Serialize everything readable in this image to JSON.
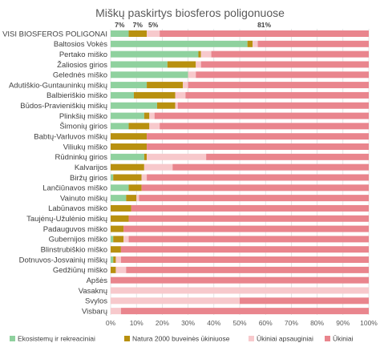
{
  "chart_data": {
    "type": "bar",
    "stacked": true,
    "orientation": "horizontal",
    "title": "Miškų paskirtys biosferos poligonuose",
    "categories": [
      "VISI BIOSFEROS POLIGONAI",
      "Baltosios Vokės",
      "Pertako miško",
      "Žaliosios girios",
      "Gelednės miško",
      "Adutiškio-Guntauninkų miškų",
      "Balbieriškio miško",
      "Būdos-Pravieniškių miškų",
      "Plinkšių miško",
      "Šimonių girios",
      "Babtų-Varluvos miškų",
      "Viliukų miško",
      "Rūdninkų girios",
      "Kalvarijos",
      "Biržų girios",
      "Lančiūnavos miško",
      "Vainuto miškų",
      "Labūnavos miško",
      "Taujėnų-Užulėnio miškų",
      "Padauguvos miško",
      "Gubernijos miško",
      "Blinstrubiškio miško",
      "Dotnuvos-Josvainių miškų",
      "Gedžiūnų miško",
      "Apšės",
      "Vasaknų",
      "Svylos",
      "Visbarų"
    ],
    "series": [
      {
        "name": "Ekosistemų ir rekreaciniai",
        "color": "#8fd19e",
        "values": [
          7,
          53,
          34,
          22,
          30,
          14,
          9,
          18,
          13,
          7,
          0,
          0,
          13,
          0,
          1,
          7,
          6,
          0,
          0,
          0,
          1,
          0,
          1,
          0,
          0,
          0,
          0,
          0
        ]
      },
      {
        "name": "Natura 2000 buveinės ūkiniuose",
        "color": "#b8900f",
        "values": [
          7,
          2,
          1,
          11,
          0,
          14,
          16,
          7,
          2,
          8,
          14,
          14,
          1,
          13,
          11,
          5,
          4,
          8,
          7,
          5,
          4,
          4,
          1,
          2,
          0,
          0,
          0,
          0
        ]
      },
      {
        "name": "Ūkiniai apsauginiai",
        "color": "#f7c9cc",
        "values": [
          5,
          2,
          4,
          2,
          3,
          2,
          4,
          1,
          2,
          4,
          0,
          0,
          23,
          11,
          2,
          0,
          1,
          0,
          0,
          0,
          2,
          0,
          2,
          4,
          0,
          100,
          50,
          4
        ]
      },
      {
        "name": "Ūkiniai",
        "color": "#e9858d",
        "values": [
          81,
          43,
          61,
          65,
          67,
          70,
          71,
          74,
          83,
          81,
          86,
          86,
          63,
          76,
          86,
          88,
          89,
          92,
          93,
          95,
          93,
          96,
          96,
          94,
          100,
          0,
          50,
          96
        ]
      }
    ],
    "data_labels": [
      {
        "category": "VISI BIOSFEROS POLIGONAI",
        "series": "Ekosistemų ir rekreaciniai",
        "text": "7%"
      },
      {
        "category": "VISI BIOSFEROS POLIGONAI",
        "series": "Natura 2000 buveinės ūkiniuose",
        "text": "7%"
      },
      {
        "category": "VISI BIOSFEROS POLIGONAI",
        "series": "Ūkiniai apsauginiai",
        "text": "5%"
      },
      {
        "category": "VISI BIOSFEROS POLIGONAI",
        "series": "Ūkiniai",
        "text": "81%"
      }
    ],
    "x_ticks": [
      "0%",
      "10%",
      "20%",
      "30%",
      "40%",
      "50%",
      "60%",
      "70%",
      "80%",
      "90%",
      "100%"
    ],
    "xlim": [
      0,
      100
    ],
    "grid": true,
    "legend_position": "bottom"
  }
}
